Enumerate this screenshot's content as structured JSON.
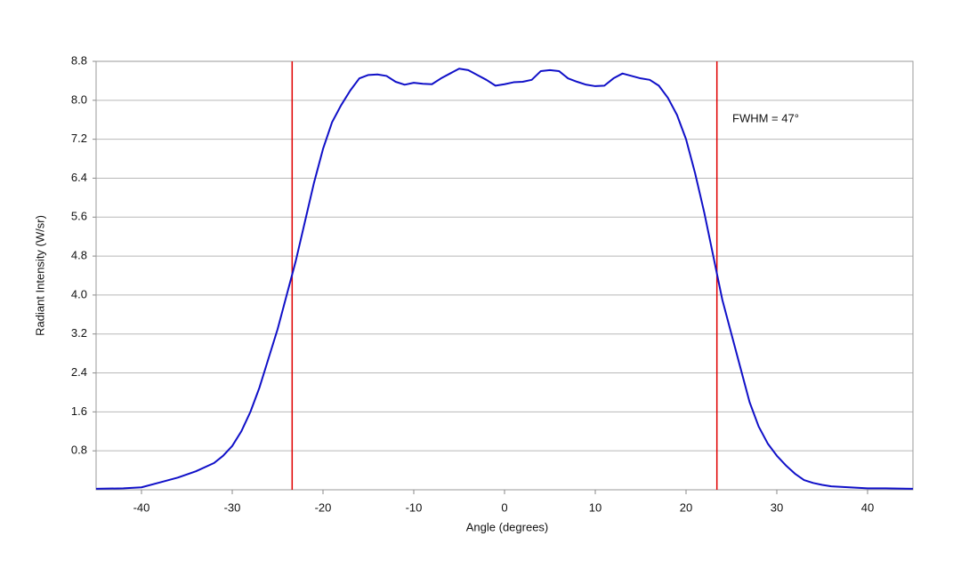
{
  "chart_data": {
    "type": "line",
    "xlabel": "Angle (degrees)",
    "ylabel": "Radiant Intensity (W/sr)",
    "annotation": "FWHM = 47°",
    "x": [
      -45,
      -42,
      -40,
      -38,
      -36,
      -34,
      -32,
      -31,
      -30,
      -29,
      -28,
      -27,
      -26,
      -25,
      -24,
      -23,
      -22,
      -21,
      -20,
      -19,
      -18,
      -17,
      -16,
      -15,
      -14,
      -13,
      -12,
      -11,
      -10,
      -9,
      -8,
      -7,
      -6,
      -5,
      -4,
      -3,
      -2,
      -1,
      0,
      1,
      2,
      3,
      4,
      5,
      6,
      7,
      8,
      9,
      10,
      11,
      12,
      13,
      14,
      15,
      16,
      17,
      18,
      19,
      20,
      21,
      22,
      23,
      24,
      25,
      26,
      27,
      28,
      29,
      30,
      31,
      32,
      33,
      34,
      35,
      36,
      38,
      40,
      42,
      45
    ],
    "series": [
      {
        "color": "#1010c8",
        "values": [
          0.02,
          0.03,
          0.05,
          0.15,
          0.25,
          0.38,
          0.55,
          0.7,
          0.9,
          1.2,
          1.6,
          2.1,
          2.7,
          3.3,
          4.0,
          4.7,
          5.5,
          6.3,
          7.0,
          7.55,
          7.9,
          8.2,
          8.45,
          8.52,
          8.53,
          8.5,
          8.38,
          8.32,
          8.36,
          8.34,
          8.33,
          8.45,
          8.55,
          8.65,
          8.62,
          8.52,
          8.42,
          8.3,
          8.33,
          8.37,
          8.38,
          8.42,
          8.6,
          8.62,
          8.6,
          8.45,
          8.38,
          8.32,
          8.29,
          8.3,
          8.45,
          8.55,
          8.5,
          8.45,
          8.42,
          8.3,
          8.05,
          7.7,
          7.2,
          6.5,
          5.7,
          4.8,
          3.9,
          3.2,
          2.5,
          1.8,
          1.3,
          0.95,
          0.7,
          0.5,
          0.33,
          0.2,
          0.14,
          0.1,
          0.07,
          0.05,
          0.03,
          0.03,
          0.02
        ]
      }
    ],
    "markers": [
      -23.4,
      23.4
    ],
    "marker_color": "#e00000",
    "xlim": [
      -45,
      45
    ],
    "xticks": [
      -40,
      -30,
      -20,
      -10,
      0,
      10,
      20,
      30,
      40
    ],
    "ylim": [
      0,
      8.8
    ],
    "yticks": [
      0.8,
      1.6,
      2.4,
      3.2,
      {
        "value": 4,
        "label": "4.0"
      },
      4.8,
      5.6,
      6.4,
      7.2,
      {
        "value": 8,
        "label": "8.0"
      },
      8.8
    ],
    "grid": true
  }
}
